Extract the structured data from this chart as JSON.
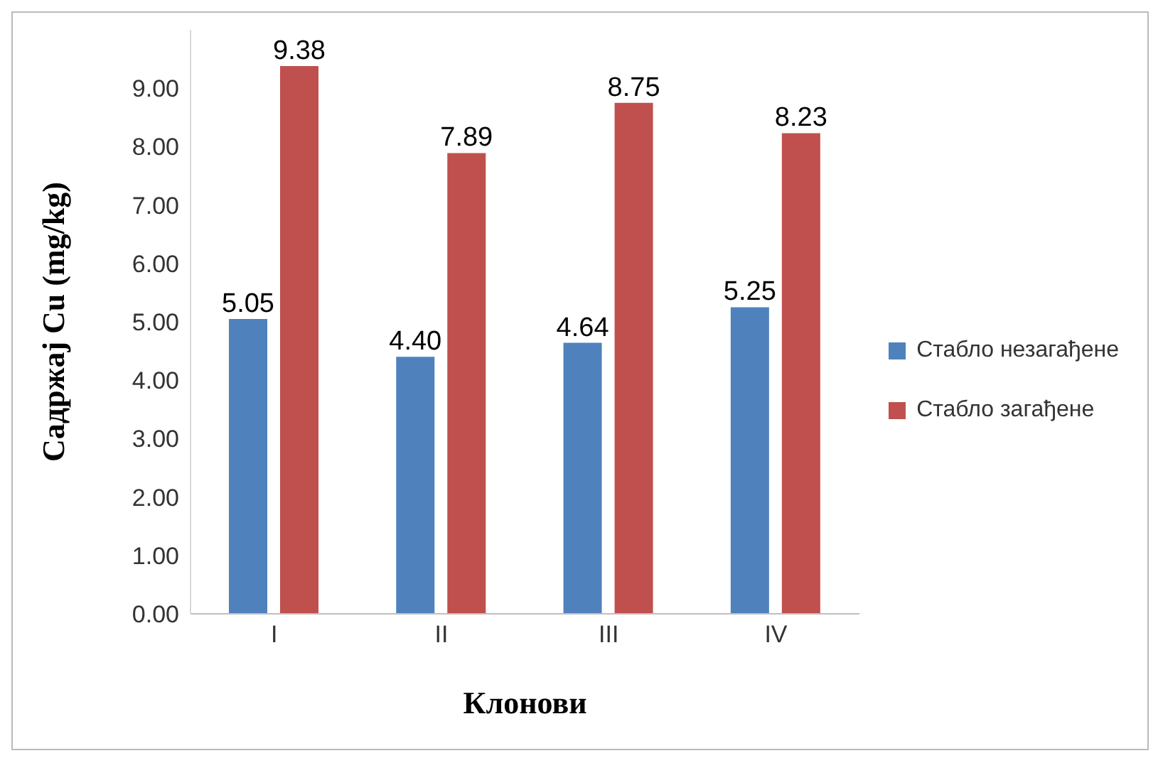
{
  "chart_data": {
    "type": "bar",
    "xlabel": "Клонови",
    "ylabel": "Садржај Cu (mg/kg)",
    "categories": [
      "I",
      "II",
      "III",
      "IV"
    ],
    "series": [
      {
        "name": "Стабло незагађене",
        "color": "#4f81bd",
        "values": [
          5.05,
          4.4,
          4.64,
          5.25
        ],
        "value_labels": [
          "5.05",
          "4.40",
          "4.64",
          "5.25"
        ]
      },
      {
        "name": "Стабло загађене",
        "color": "#c0504d",
        "values": [
          9.38,
          7.89,
          8.75,
          8.23
        ],
        "value_labels": [
          "9.38",
          "7.89",
          "8.75",
          "8.23"
        ]
      }
    ],
    "yticks": [
      {
        "value": 0,
        "label": "0.00"
      },
      {
        "value": 1,
        "label": "1.00"
      },
      {
        "value": 2,
        "label": "2.00"
      },
      {
        "value": 3,
        "label": "3.00"
      },
      {
        "value": 4,
        "label": "4.00"
      },
      {
        "value": 5,
        "label": "5.00"
      },
      {
        "value": 6,
        "label": "6.00"
      },
      {
        "value": 7,
        "label": "7.00"
      },
      {
        "value": 8,
        "label": "8.00"
      },
      {
        "value": 9,
        "label": "9.00"
      }
    ],
    "ylim": [
      0,
      10
    ],
    "grid": false,
    "legend": "right"
  }
}
